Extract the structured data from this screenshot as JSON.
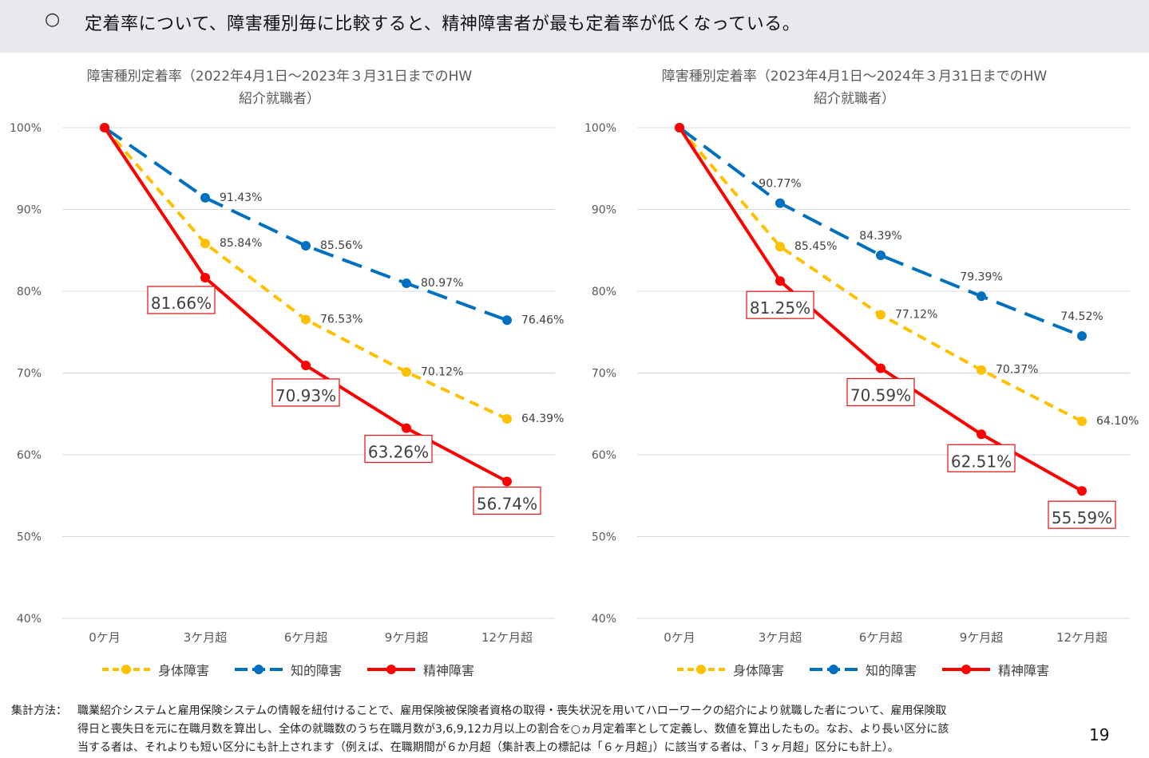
{
  "header": {
    "bullet": "○",
    "text": "定着率について、障害種別毎に比較すると、精神障害者が最も定着率が低くなっている。"
  },
  "chart_data": [
    {
      "type": "line",
      "title": "障害種別定着率（2022年4月1日～2023年３月31日までのHW\n紹介就職者）",
      "categories": [
        "0ケ月",
        "3ケ月超",
        "6ケ月超",
        "9ケ月超",
        "12ケ月超"
      ],
      "y_ticks": [
        "100%",
        "90%",
        "80%",
        "70%",
        "60%",
        "50%",
        "40%"
      ],
      "ylim": [
        40,
        100
      ],
      "grid": true,
      "legend_position": "bottom",
      "series": [
        {
          "name": "身体障害",
          "color": "#ffc000",
          "style": "dashed-short",
          "values": [
            100,
            85.84,
            76.53,
            70.12,
            64.39
          ],
          "labels": [
            "",
            "85.84%",
            "76.53%",
            "70.12%",
            "64.39%"
          ]
        },
        {
          "name": "知的障害",
          "color": "#0070c0",
          "style": "dashed-long",
          "values": [
            100,
            91.43,
            85.56,
            80.97,
            76.46
          ],
          "labels": [
            "",
            "91.43%",
            "85.56%",
            "80.97%",
            "76.46%"
          ]
        },
        {
          "name": "精神障害",
          "color": "#ff0000",
          "style": "solid",
          "values": [
            100,
            81.66,
            70.93,
            63.26,
            56.74
          ],
          "labels": [
            "",
            "81.66%",
            "70.93%",
            "63.26%",
            "56.74%"
          ],
          "boxed": true
        }
      ]
    },
    {
      "type": "line",
      "title": "障害種別定着率（2023年4月1日～2024年３月31日までのHW\n紹介就職者）",
      "categories": [
        "0ケ月",
        "3ケ月超",
        "6ケ月超",
        "9ケ月超",
        "12ケ月超"
      ],
      "y_ticks": [
        "100%",
        "90%",
        "80%",
        "70%",
        "60%",
        "50%",
        "40%"
      ],
      "ylim": [
        40,
        100
      ],
      "grid": true,
      "legend_position": "bottom",
      "series": [
        {
          "name": "身体障害",
          "color": "#ffc000",
          "style": "dashed-short",
          "values": [
            100,
            85.45,
            77.12,
            70.37,
            64.1
          ],
          "labels": [
            "",
            "85.45%",
            "77.12%",
            "70.37%",
            "64.10%"
          ]
        },
        {
          "name": "知的障害",
          "color": "#0070c0",
          "style": "dashed-long",
          "values": [
            100,
            90.77,
            84.39,
            79.39,
            74.52
          ],
          "labels": [
            "",
            "90.77%",
            "84.39%",
            "79.39%",
            "74.52%"
          ]
        },
        {
          "name": "精神障害",
          "color": "#ff0000",
          "style": "solid",
          "values": [
            100,
            81.25,
            70.59,
            62.51,
            55.59
          ],
          "labels": [
            "",
            "81.25%",
            "70.59%",
            "62.51%",
            "55.59%"
          ],
          "boxed": true
        }
      ]
    }
  ],
  "footer": {
    "head": "集計方法：",
    "lines": [
      "職業紹介システムと雇用保険システムの情報を紐付けることで、雇用保険被保険者資格の取得・喪失状況を用いてハローワークの紹介により就職した者について、雇用保険取",
      "得日と喪失日を元に在職月数を算出し、全体の就職数のうち在職月数が3,6,9,12カ月以上の割合を○ヵ月定着率として定義し、数値を算出したもの。なお、より長い区分に該",
      "当する者は、それよりも短い区分にも計上されます（例えば、在職期間が６か月超（集計表上の標記は「６ヶ月超」）に該当する者は、「３ヶ月超」区分にも計上）。"
    ]
  },
  "page_number": "19"
}
